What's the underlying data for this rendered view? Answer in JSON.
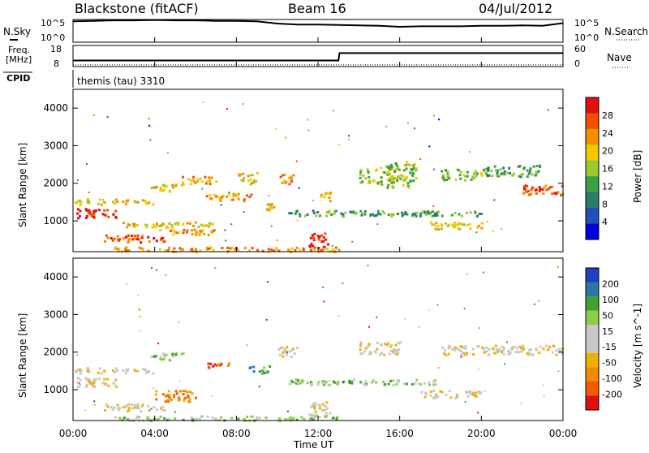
{
  "header": {
    "site": "Blackstone (fitACF)",
    "beam": "Beam 16",
    "date": "04/Jul/2012"
  },
  "left_labels": {
    "nsky": "N.Sky",
    "freq_line1": "Freq.",
    "freq_line2": "[MHz]",
    "cpid": "CPID"
  },
  "right_labels": {
    "nsearch": "N.Search",
    "nave": "Nave"
  },
  "cpid_value": "themis (tau) 3310",
  "chart_data": [
    {
      "type": "line",
      "panel": "noise",
      "x_hours": [
        0,
        1,
        2,
        3,
        4,
        5,
        6,
        7,
        8,
        9,
        10,
        11,
        12,
        13,
        14,
        15,
        16,
        17,
        18,
        19,
        20,
        21,
        22,
        23,
        24
      ],
      "series": [
        {
          "name": "N.Sky",
          "values": [
            4.6,
            4.7,
            4.8,
            4.8,
            4.9,
            4.8,
            4.8,
            4.7,
            4.7,
            4.6,
            4.1,
            3.9,
            3.9,
            3.8,
            3.7,
            3.6,
            3.4,
            3.5,
            3.5,
            3.5,
            3.6,
            3.6,
            3.7,
            3.6,
            4.2
          ]
        }
      ],
      "ylabel_left": "N.Sky",
      "ylabel_right": "N.Search",
      "left_ticks": [
        "10^5",
        "10^0"
      ],
      "right_ticks": [
        "10^5",
        "10^0"
      ]
    },
    {
      "type": "line",
      "panel": "freq-nave",
      "x_hours": [
        0,
        0.1,
        13,
        13.05,
        24
      ],
      "series": [
        {
          "name": "Freq.",
          "values": [
            10.9,
            10.9,
            10.9,
            14.4,
            14.4
          ]
        },
        {
          "name": "Nave",
          "values": [
            5,
            5,
            5,
            5,
            5
          ]
        }
      ],
      "left_ticks": [
        "18",
        "8"
      ],
      "right_ticks": [
        "60",
        "0"
      ]
    },
    {
      "type": "heatmap",
      "panel": "power",
      "ylabel": "Slant Range [km]",
      "ylim": [
        180,
        4500
      ],
      "y_ticks": [
        1000,
        2000,
        3000,
        4000
      ],
      "colorbar_label": "Power [dB]",
      "colorbar_ticks": [
        "28",
        "24",
        "20",
        "16",
        "12",
        "8",
        "4"
      ],
      "colors": [
        "#0000dd",
        "#2050b8",
        "#2c7a70",
        "#38a040",
        "#9ac830",
        "#f0c800",
        "#f09000",
        "#f05000",
        "#e01010"
      ],
      "bands": [
        {
          "t0": 0,
          "t1": 2.2,
          "r0": 1100,
          "r1": 1350,
          "level": 8
        },
        {
          "t0": 0,
          "t1": 4.0,
          "r0": 1450,
          "r1": 1600,
          "level": 5
        },
        {
          "t0": 1.5,
          "t1": 4.5,
          "r0": 450,
          "r1": 650,
          "level": 7
        },
        {
          "t0": 3.8,
          "t1": 5.5,
          "r0": 1800,
          "r1": 2000,
          "level": 5
        },
        {
          "t0": 5.3,
          "t1": 7.0,
          "r0": 2000,
          "r1": 2200,
          "level": 6
        },
        {
          "t0": 6.5,
          "t1": 8.7,
          "r0": 1550,
          "r1": 1750,
          "level": 6
        },
        {
          "t0": 8.0,
          "t1": 9.0,
          "r0": 2000,
          "r1": 2300,
          "level": 5
        },
        {
          "t0": 9.4,
          "t1": 10.1,
          "r0": 1300,
          "r1": 1500,
          "level": 5
        },
        {
          "t0": 10.1,
          "t1": 10.8,
          "r0": 2000,
          "r1": 2300,
          "level": 6
        },
        {
          "t0": 11.5,
          "t1": 12.5,
          "r0": 300,
          "r1": 700,
          "level": 8
        },
        {
          "t0": 12.0,
          "t1": 12.6,
          "r0": 1550,
          "r1": 1800,
          "level": 6
        },
        {
          "t0": 14.0,
          "t1": 15.8,
          "r0": 2000,
          "r1": 2400,
          "level": 4
        },
        {
          "t0": 15.3,
          "t1": 16.8,
          "r0": 1900,
          "r1": 2600,
          "level": 4
        },
        {
          "t0": 16.0,
          "t1": 20.0,
          "r0": 1150,
          "r1": 1250,
          "level": 3
        },
        {
          "t0": 17.3,
          "t1": 20.0,
          "r0": 800,
          "r1": 1000,
          "level": 5
        },
        {
          "t0": 18.0,
          "t1": 20.0,
          "r0": 2100,
          "r1": 2400,
          "level": 4
        },
        {
          "t0": 20.0,
          "t1": 23.0,
          "r0": 2200,
          "r1": 2500,
          "level": 3
        },
        {
          "t0": 22.0,
          "t1": 24.0,
          "r0": 1700,
          "r1": 2000,
          "level": 7
        },
        {
          "t0": 2.0,
          "t1": 13.0,
          "r0": 200,
          "r1": 320,
          "level": 6
        },
        {
          "t0": 2.0,
          "t1": 6.8,
          "r0": 850,
          "r1": 1000,
          "level": 5
        },
        {
          "t0": 4.0,
          "t1": 7.0,
          "r0": 650,
          "r1": 800,
          "level": 6
        },
        {
          "t0": 10.5,
          "t1": 18.0,
          "r0": 1150,
          "r1": 1300,
          "level": 3
        }
      ]
    },
    {
      "type": "heatmap",
      "panel": "velocity",
      "ylabel": "Slant Range [km]",
      "ylim": [
        180,
        4500
      ],
      "y_ticks": [
        1000,
        2000,
        3000,
        4000
      ],
      "colorbar_label": "Velocity [m s^-1]",
      "colorbar_ticks": [
        "200",
        "100",
        "50",
        "15",
        "-15",
        "-50",
        "-100",
        "-200"
      ],
      "colors": [
        "#e01010",
        "#f05a00",
        "#f08c00",
        "#f0b000",
        "#c8c8c8",
        "#c8c8c8",
        "#8ad040",
        "#40a030",
        "#2878a0",
        "#2040c0"
      ],
      "bands": [
        {
          "t0": 0,
          "t1": 2.2,
          "r0": 1100,
          "r1": 1350,
          "level": 4
        },
        {
          "t0": 0,
          "t1": 4.0,
          "r0": 1450,
          "r1": 1600,
          "level": 4
        },
        {
          "t0": 1.5,
          "t1": 4.5,
          "r0": 450,
          "r1": 650,
          "level": 4
        },
        {
          "t0": 3.8,
          "t1": 5.5,
          "r0": 1800,
          "r1": 2000,
          "level": 6
        },
        {
          "t0": 4.0,
          "t1": 6.0,
          "r0": 700,
          "r1": 1000,
          "level": 2
        },
        {
          "t0": 6.5,
          "t1": 7.6,
          "r0": 1550,
          "r1": 1750,
          "level": 1
        },
        {
          "t0": 8.5,
          "t1": 9.6,
          "r0": 1450,
          "r1": 1650,
          "level": 7
        },
        {
          "t0": 10.0,
          "t1": 11.0,
          "r0": 1900,
          "r1": 2200,
          "level": 4
        },
        {
          "t0": 11.5,
          "t1": 12.6,
          "r0": 300,
          "r1": 700,
          "level": 4
        },
        {
          "t0": 14.0,
          "t1": 16.0,
          "r0": 1950,
          "r1": 2300,
          "level": 4
        },
        {
          "t0": 17.0,
          "t1": 20.0,
          "r0": 800,
          "r1": 1000,
          "level": 4
        },
        {
          "t0": 18.0,
          "t1": 24.0,
          "r0": 1950,
          "r1": 2200,
          "level": 4
        },
        {
          "t0": 2.0,
          "t1": 13.0,
          "r0": 200,
          "r1": 320,
          "level": 6
        },
        {
          "t0": 10.5,
          "t1": 18.0,
          "r0": 1150,
          "r1": 1300,
          "level": 6
        }
      ]
    }
  ],
  "x_axis": {
    "label": "Time UT",
    "ticks": [
      "00:00",
      "04:00",
      "08:00",
      "12:00",
      "16:00",
      "20:00",
      "00:00"
    ]
  }
}
